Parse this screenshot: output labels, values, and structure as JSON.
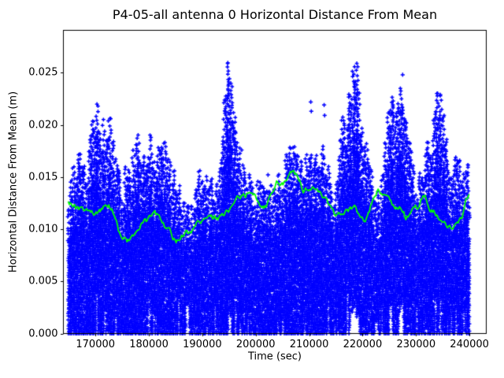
{
  "title": "P4-05-all antenna 0 Horizontal Distance From Mean",
  "chart_data": {
    "type": "scatter",
    "title": "P4-05-all antenna 0 Horizontal Distance From Mean",
    "xlabel": "Time (sec)",
    "ylabel": "Horizontal Distance From Mean (m)",
    "grid": false,
    "legend": "none",
    "xlim": [
      164000,
      243150
    ],
    "ylim": [
      0,
      0.02906
    ],
    "x_ticks": [
      170000,
      180000,
      190000,
      200000,
      210000,
      220000,
      230000,
      240000
    ],
    "x_tick_labels": [
      "170000",
      "180000",
      "190000",
      "200000",
      "210000",
      "220000",
      "230000",
      "240000"
    ],
    "y_ticks": [
      0.0,
      0.005,
      0.01,
      0.015,
      0.02,
      0.025
    ],
    "y_tick_labels": [
      "0.000",
      "0.005",
      "0.010",
      "0.015",
      "0.020",
      "0.025"
    ],
    "series": [
      {
        "name": "horizontal-distance-samples",
        "type": "scatter",
        "marker": "+",
        "color": "#0000ff",
        "description": "Dense + markers spanning from ~0 m up to a spiky upper envelope; envelope gives max distance vs time",
        "t_range": [
          165000,
          240000
        ],
        "envelope": {
          "t": [
            165000,
            165800,
            166600,
            167400,
            168200,
            169000,
            169600,
            170200,
            170800,
            171600,
            172400,
            173100,
            173900,
            174600,
            175300,
            175900,
            176700,
            177500,
            178100,
            178900,
            179700,
            180300,
            181000,
            181800,
            182600,
            183400,
            184200,
            184900,
            185700,
            186500,
            187500,
            188500,
            189400,
            190000,
            190800,
            191600,
            192500,
            193300,
            194100,
            194700,
            195100,
            195600,
            196200,
            196900,
            197700,
            198400,
            199200,
            200000,
            201000,
            202000,
            203000,
            204000,
            205000,
            205800,
            206600,
            207400,
            208200,
            209000,
            209800,
            210400,
            211200,
            212000,
            212800,
            213600,
            214400,
            215200,
            215900,
            216700,
            217500,
            218300,
            218900,
            219500,
            220100,
            220900,
            221700,
            222500,
            223300,
            224100,
            224900,
            225600,
            226400,
            227200,
            227600,
            228300,
            229100,
            229900,
            230700,
            231500,
            232300,
            233100,
            233800,
            234500,
            235200,
            236000,
            236800,
            237600,
            238200,
            238900,
            239500,
            240000
          ],
          "max": [
            0.0129,
            0.017,
            0.0176,
            0.0178,
            0.0152,
            0.0185,
            0.0215,
            0.0225,
            0.0213,
            0.0205,
            0.0216,
            0.019,
            0.0175,
            0.0148,
            0.0145,
            0.0173,
            0.0155,
            0.0198,
            0.0207,
            0.0172,
            0.0165,
            0.0191,
            0.017,
            0.0183,
            0.0195,
            0.017,
            0.016,
            0.0168,
            0.014,
            0.0125,
            0.0122,
            0.0125,
            0.0155,
            0.0165,
            0.0147,
            0.0153,
            0.014,
            0.016,
            0.0215,
            0.0278,
            0.029,
            0.024,
            0.02,
            0.0181,
            0.017,
            0.0152,
            0.0148,
            0.0145,
            0.0147,
            0.0143,
            0.0148,
            0.0153,
            0.015,
            0.0175,
            0.0183,
            0.018,
            0.0178,
            0.0165,
            0.0175,
            0.0196,
            0.018,
            0.0185,
            0.018,
            0.0165,
            0.0143,
            0.015,
            0.0205,
            0.021,
            0.023,
            0.0255,
            0.0263,
            0.024,
            0.0185,
            0.0183,
            0.016,
            0.0141,
            0.0143,
            0.0175,
            0.0215,
            0.023,
            0.0215,
            0.0235,
            0.0248,
            0.022,
            0.0175,
            0.015,
            0.0155,
            0.0168,
            0.0185,
            0.02,
            0.023,
            0.0231,
            0.021,
            0.0175,
            0.016,
            0.017,
            0.0186,
            0.0155,
            0.018,
            0.0135
          ]
        },
        "outliers": [
          [
            198800,
            0.0152
          ],
          [
            202300,
            0.0152
          ],
          [
            210300,
            0.0222
          ],
          [
            210400,
            0.0213
          ],
          [
            212800,
            0.0219
          ],
          [
            212900,
            0.0209
          ],
          [
            227500,
            0.0248
          ]
        ]
      },
      {
        "name": "running-mean",
        "type": "line",
        "color": "#00ff00",
        "t": [
          164900,
          166000,
          167000,
          168500,
          170000,
          171000,
          172200,
          173200,
          174300,
          175000,
          175800,
          176600,
          177600,
          178700,
          180000,
          181000,
          182000,
          183100,
          184100,
          185100,
          186100,
          187100,
          188000,
          189000,
          190000,
          191000,
          192000,
          193000,
          193900,
          194900,
          195900,
          196600,
          197400,
          198400,
          199300,
          199800,
          200800,
          201500,
          202300,
          203000,
          204000,
          204500,
          205200,
          205900,
          206900,
          207900,
          208900,
          209900,
          210800,
          211800,
          212800,
          213800,
          214800,
          215700,
          216700,
          217700,
          218700,
          219700,
          220400,
          221100,
          222100,
          222900,
          223800,
          224800,
          225800,
          226500,
          227200,
          228000,
          228700,
          229500,
          230200,
          231000,
          231700,
          232600,
          233600,
          234600,
          235600,
          236600,
          237500,
          238500,
          239300,
          239900
        ],
        "v": [
          0.0127,
          0.0121,
          0.0118,
          0.0119,
          0.0115,
          0.0119,
          0.0125,
          0.012,
          0.01,
          0.0092,
          0.0088,
          0.0091,
          0.0097,
          0.0106,
          0.011,
          0.0115,
          0.0112,
          0.0103,
          0.0097,
          0.0087,
          0.0095,
          0.0096,
          0.0097,
          0.0106,
          0.0108,
          0.0109,
          0.011,
          0.0111,
          0.0113,
          0.0117,
          0.0123,
          0.0129,
          0.0131,
          0.0134,
          0.0133,
          0.0136,
          0.0123,
          0.0121,
          0.0125,
          0.0136,
          0.0148,
          0.0139,
          0.0142,
          0.0146,
          0.0155,
          0.0148,
          0.0138,
          0.0139,
          0.0143,
          0.0136,
          0.0132,
          0.0121,
          0.0113,
          0.0113,
          0.0117,
          0.0118,
          0.0119,
          0.0113,
          0.0108,
          0.0114,
          0.0132,
          0.0136,
          0.0136,
          0.0128,
          0.0121,
          0.0119,
          0.012,
          0.0112,
          0.0111,
          0.0118,
          0.012,
          0.0128,
          0.0134,
          0.012,
          0.0116,
          0.0108,
          0.0104,
          0.0103,
          0.0105,
          0.011,
          0.0127,
          0.0133
        ]
      }
    ]
  }
}
